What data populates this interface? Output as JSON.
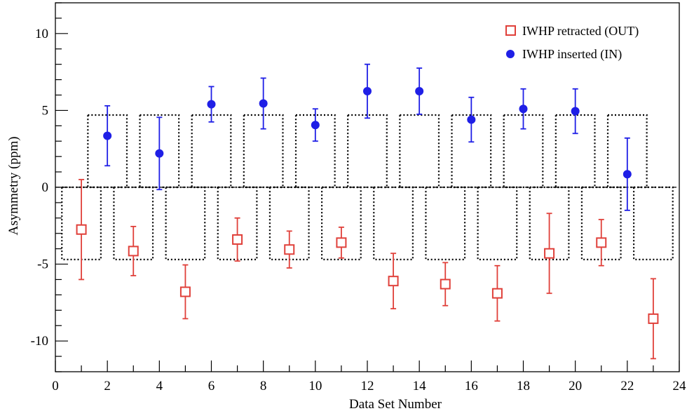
{
  "chart_data": {
    "type": "scatter",
    "title": "",
    "xlabel": "Data Set Number",
    "ylabel": "Asymmetry (ppm)",
    "xlim": [
      0,
      24
    ],
    "ylim": [
      -12,
      12
    ],
    "x_ticks": [
      0,
      2,
      4,
      6,
      8,
      10,
      12,
      14,
      16,
      18,
      20,
      22,
      24
    ],
    "y_ticks": [
      -10,
      -5,
      0,
      5,
      10
    ],
    "reference_line": 0,
    "band_halfwidth": 4.7,
    "legend_position": "top-right",
    "series": [
      {
        "name": "IWHP retracted (OUT)",
        "color": "#e0403a",
        "marker": "open-square",
        "points": [
          {
            "x": 1,
            "y": -2.75,
            "err": 3.25
          },
          {
            "x": 3,
            "y": -4.15,
            "err": 1.6
          },
          {
            "x": 5,
            "y": -6.8,
            "err": 1.75
          },
          {
            "x": 7,
            "y": -3.4,
            "err": 1.4
          },
          {
            "x": 9,
            "y": -4.05,
            "err": 1.2
          },
          {
            "x": 11,
            "y": -3.6,
            "err": 1.0
          },
          {
            "x": 13,
            "y": -6.1,
            "err": 1.8
          },
          {
            "x": 15,
            "y": -6.3,
            "err": 1.4
          },
          {
            "x": 17,
            "y": -6.9,
            "err": 1.8
          },
          {
            "x": 19,
            "y": -4.3,
            "err": 2.6
          },
          {
            "x": 21,
            "y": -3.6,
            "err": 1.5
          },
          {
            "x": 23,
            "y": -8.55,
            "err": 2.6
          }
        ]
      },
      {
        "name": "IWHP inserted (IN)",
        "color": "#1f1fe6",
        "marker": "filled-circle",
        "points": [
          {
            "x": 2,
            "y": 3.35,
            "err": 1.95
          },
          {
            "x": 4,
            "y": 2.2,
            "err": 2.35
          },
          {
            "x": 6,
            "y": 5.4,
            "err": 1.15
          },
          {
            "x": 8,
            "y": 5.45,
            "err": 1.65
          },
          {
            "x": 10,
            "y": 4.05,
            "err": 1.05
          },
          {
            "x": 12,
            "y": 6.25,
            "err": 1.75
          },
          {
            "x": 14,
            "y": 6.25,
            "err": 1.5
          },
          {
            "x": 16,
            "y": 4.4,
            "err": 1.45
          },
          {
            "x": 18,
            "y": 5.1,
            "err": 1.3
          },
          {
            "x": 20,
            "y": 4.95,
            "err": 1.45
          },
          {
            "x": 22,
            "y": 0.85,
            "err": 2.35
          }
        ]
      }
    ]
  }
}
